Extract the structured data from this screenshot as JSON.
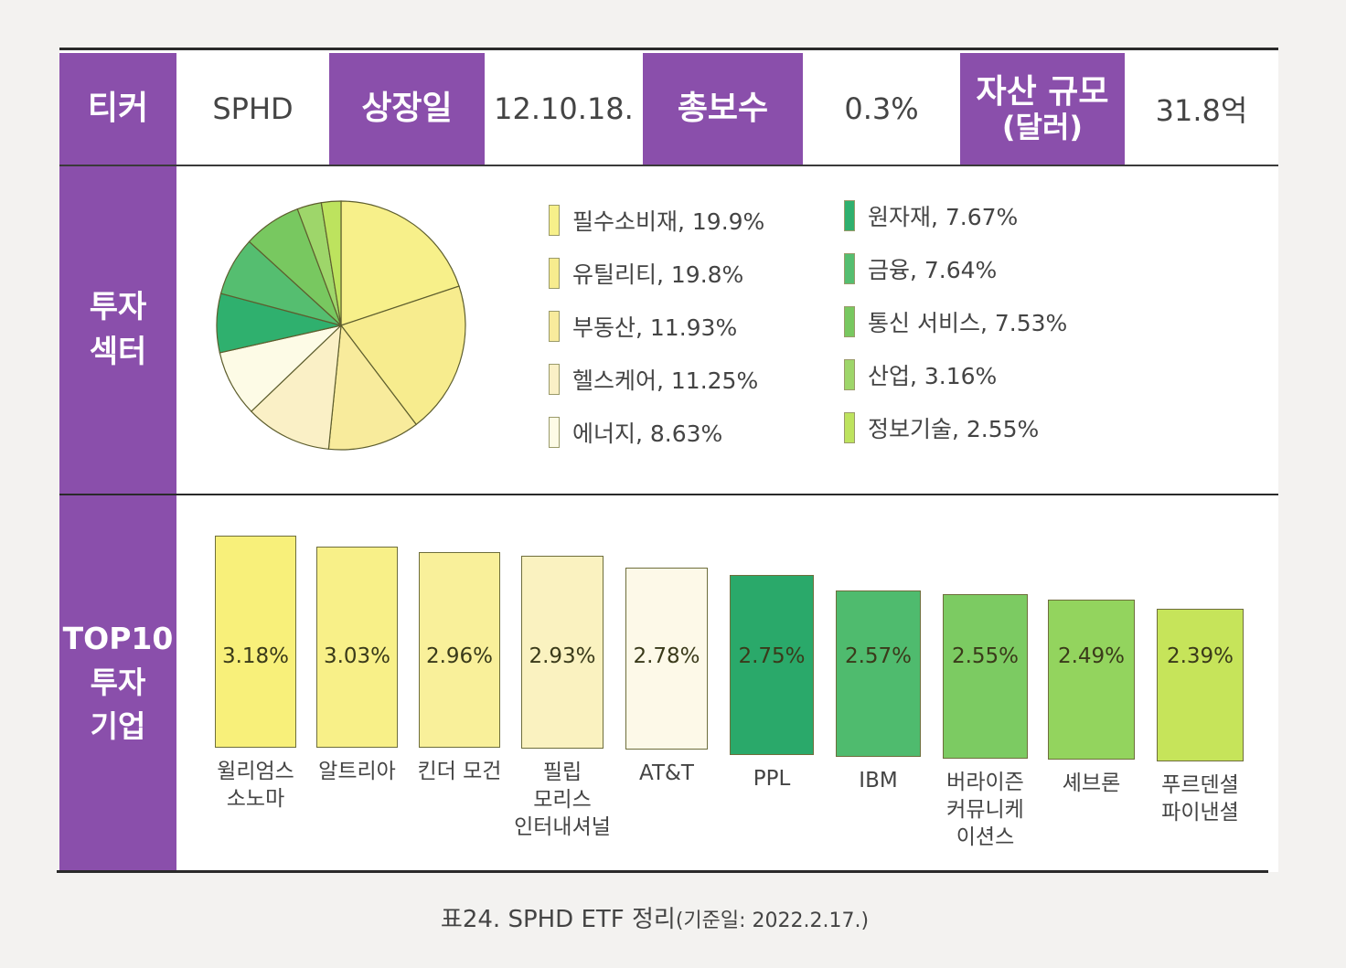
{
  "header": {
    "ticker_label": "티커",
    "ticker_value": "SPHD",
    "listing_label": "상장일",
    "listing_value": "12.10.18.",
    "fee_label": "총보수",
    "fee_value": "0.3%",
    "assets_label_line1": "자산 규모",
    "assets_label_line2": "(달러)",
    "assets_value": "31.8억"
  },
  "sections": {
    "sector_line1": "투자",
    "sector_line2": "섹터",
    "top10_line1": "TOP10",
    "top10_line2": "투자",
    "top10_line3": "기업"
  },
  "colors": {
    "purple": "#8a4fab"
  },
  "chart_data": [
    {
      "type": "pie",
      "title": "투자 섹터",
      "categories": [
        "필수소비재",
        "유틸리티",
        "부동산",
        "헬스케어",
        "에너지",
        "원자재",
        "금융",
        "통신 서비스",
        "산업",
        "정보기술"
      ],
      "values": [
        19.9,
        19.8,
        11.93,
        11.25,
        8.63,
        7.67,
        7.64,
        7.53,
        3.16,
        2.55
      ],
      "labels": [
        "필수소비재, 19.9%",
        "유틸리티, 19.8%",
        "부동산, 11.93%",
        "헬스케어, 11.25%",
        "에너지, 8.63%",
        "원자재, 7.67%",
        "금융, 7.64%",
        "통신 서비스, 7.53%",
        "산업, 3.16%",
        "정보기술, 2.55%"
      ],
      "colors": [
        "#f7f08a",
        "#f7ec8e",
        "#f8eb9c",
        "#faf0c6",
        "#fdfbe6",
        "#2fb06e",
        "#55be70",
        "#78c860",
        "#9ed66a",
        "#bde35e"
      ],
      "legend": "right"
    },
    {
      "type": "bar",
      "title": "TOP10 투자 기업",
      "categories": [
        "윌리엄스 소노마",
        "알트리아",
        "킨더 모건",
        "필립 모리스 인터내셔널",
        "AT&T",
        "PPL",
        "IBM",
        "버라이즌 커뮤니케이션스",
        "셰브론",
        "푸르덴셜 파이낸셜"
      ],
      "label_lines": [
        [
          "윌리엄스",
          "소노마"
        ],
        [
          "알트리아"
        ],
        [
          "킨더 모건"
        ],
        [
          "필립",
          "모리스",
          "인터내셔널"
        ],
        [
          "AT&T"
        ],
        [
          "PPL"
        ],
        [
          "IBM"
        ],
        [
          "버라이즌",
          "커뮤니케",
          "이션스"
        ],
        [
          "셰브론"
        ],
        [
          "푸르덴셜",
          "파이낸셜"
        ]
      ],
      "values": [
        3.18,
        3.03,
        2.96,
        2.93,
        2.78,
        2.75,
        2.57,
        2.55,
        2.49,
        2.39
      ],
      "value_labels": [
        "3.18%",
        "3.03%",
        "2.96%",
        "2.93%",
        "2.78%",
        "2.75%",
        "2.57%",
        "2.55%",
        "2.49%",
        "2.39%"
      ],
      "colors": [
        "#f8f07a",
        "#f8f088",
        "#f9f09a",
        "#faf2c0",
        "#fdf9e8",
        "#2aa96a",
        "#4fbb6e",
        "#7ccb62",
        "#93d45e",
        "#c6e45a"
      ]
    }
  ],
  "caption": {
    "main": "표24. SPHD ETF 정리",
    "sub": "(기준일: 2022.2.17.)"
  }
}
